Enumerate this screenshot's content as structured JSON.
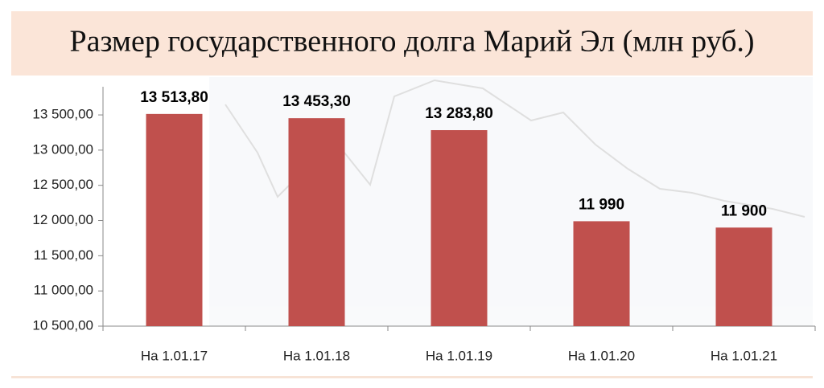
{
  "chart_data": {
    "type": "bar",
    "title": "Размер государственного долга Марий Эл (млн руб.)",
    "categories": [
      "На 1.01.17",
      "На 1.01.18",
      "На 1.01.19",
      "На 1.01.20",
      "На 1.01.21"
    ],
    "values": [
      13513.8,
      13453.3,
      13283.8,
      11990,
      11900
    ],
    "value_labels": [
      "13 513,80",
      "13 453,30",
      "13 283,80",
      "11 990",
      "11 900"
    ],
    "color": "#c0504d",
    "ylim": [
      10500,
      13900
    ],
    "yticks": [
      {
        "value": 10500,
        "label": "10 500,00"
      },
      {
        "value": 11000,
        "label": "11 000,00"
      },
      {
        "value": 11500,
        "label": "11 500,00"
      },
      {
        "value": 12000,
        "label": "12 000,00"
      },
      {
        "value": 12500,
        "label": "12 500,00"
      },
      {
        "value": 13000,
        "label": "13 000,00"
      },
      {
        "value": 13500,
        "label": "13 500,00"
      }
    ],
    "grid": false
  }
}
